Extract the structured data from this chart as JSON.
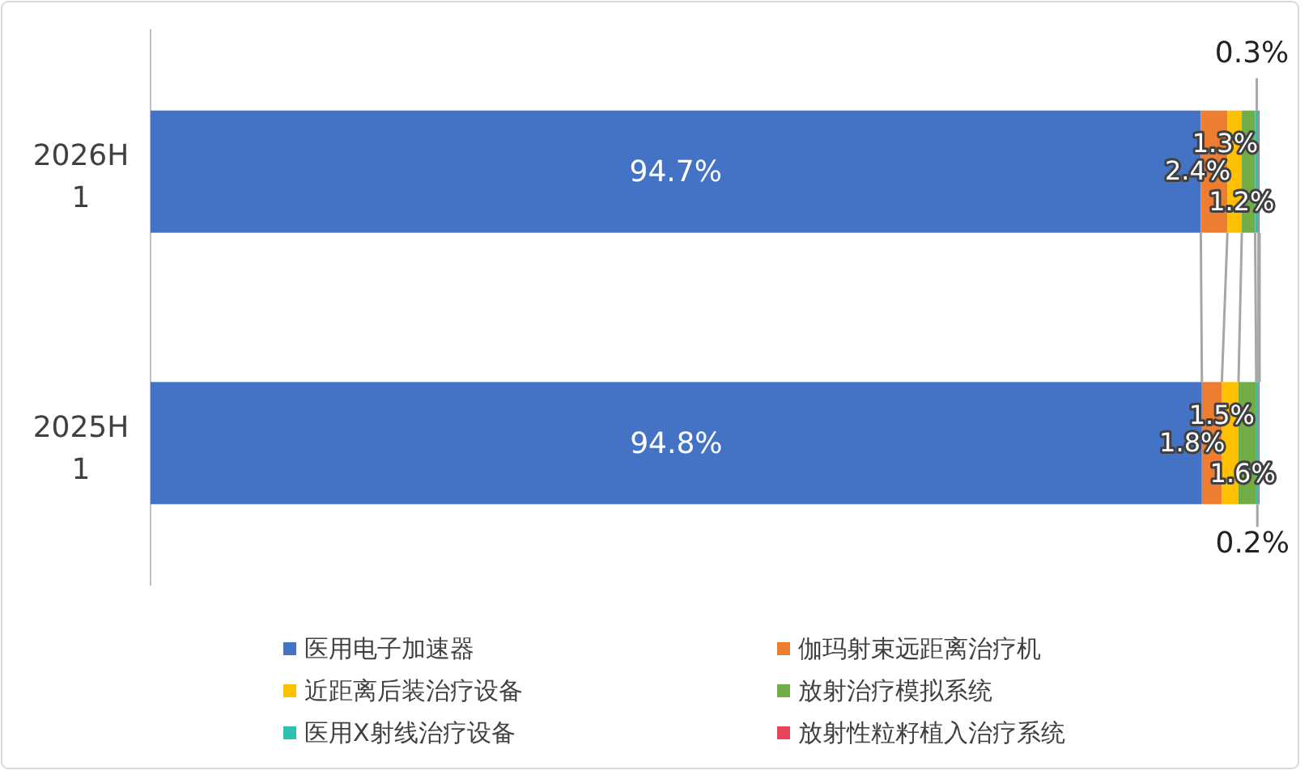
{
  "chart_data": {
    "type": "bar",
    "orientation": "horizontal",
    "stacked": true,
    "categories": [
      "2026H1",
      "2025H1"
    ],
    "xlim": [
      0,
      100
    ],
    "tick_labels": "y",
    "legend": "bottom",
    "series": [
      {
        "name": "医用电子加速器",
        "color": "#4472c4",
        "values": [
          94.7,
          94.8
        ],
        "value_labels": [
          "94.7%",
          "94.8%"
        ]
      },
      {
        "name": "伽玛射束远距离治疗机",
        "color": "#ed7d31",
        "values": [
          2.4,
          1.8
        ],
        "value_labels": [
          "2.4%",
          "1.8%"
        ]
      },
      {
        "name": "近距离后装治疗设备",
        "color": "#ffc000",
        "values": [
          1.3,
          1.5
        ],
        "value_labels": [
          "1.3%",
          "1.5%"
        ]
      },
      {
        "name": "放射治疗模拟系统",
        "color": "#70ad47",
        "values": [
          1.2,
          1.6
        ],
        "value_labels": [
          "1.2%",
          "1.6%"
        ]
      },
      {
        "name": "医用X射线治疗设备",
        "color": "#2fbfb0",
        "values": [
          0.3,
          0.2
        ],
        "value_labels": [
          "0.3%",
          "0.2%"
        ]
      },
      {
        "name": "放射性粒籽植入治疗系统",
        "color": "#e8465a",
        "values": [
          0.1,
          0.1
        ],
        "value_labels": [
          null,
          null
        ]
      }
    ]
  }
}
